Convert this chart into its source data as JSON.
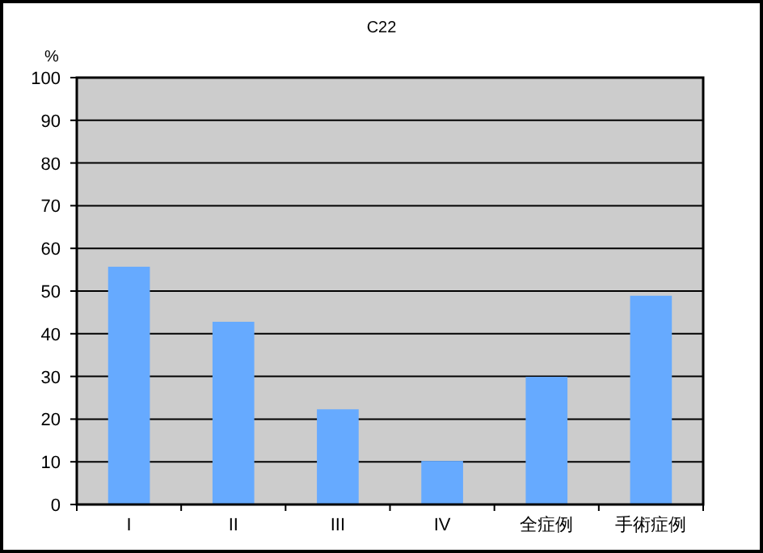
{
  "chart_data": {
    "type": "bar",
    "title": "C22",
    "ylabel": "%",
    "categories": [
      "I",
      "II",
      "III",
      "IV",
      "全症例",
      "手術症例"
    ],
    "values": [
      55.7,
      42.8,
      22.3,
      10.2,
      29.9,
      48.9
    ],
    "color": "#66aaff",
    "ylim": [
      0,
      100
    ],
    "yticks": [
      0,
      10,
      20,
      30,
      40,
      50,
      60,
      70,
      80,
      90,
      100
    ],
    "grid": "y"
  }
}
